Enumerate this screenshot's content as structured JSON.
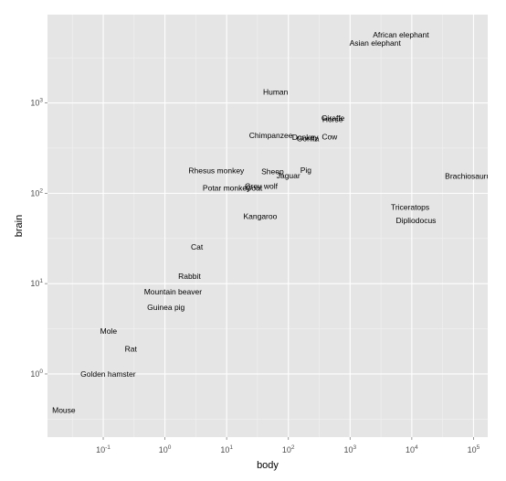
{
  "chart_data": {
    "type": "scatter",
    "title": "",
    "xlabel": "body",
    "ylabel": "brain",
    "x_scale": "log10",
    "y_scale": "log10",
    "xlim": [
      0.0125,
      170000
    ],
    "ylim": [
      0.2,
      9500
    ],
    "grid": true,
    "background": "#e5e5e5",
    "grid_color": "#ffffff",
    "x_ticks": [
      {
        "value": 0.1,
        "base": "10",
        "exp": "-1"
      },
      {
        "value": 1,
        "base": "10",
        "exp": "0"
      },
      {
        "value": 10,
        "base": "10",
        "exp": "1"
      },
      {
        "value": 100,
        "base": "10",
        "exp": "2"
      },
      {
        "value": 1000,
        "base": "10",
        "exp": "3"
      },
      {
        "value": 10000,
        "base": "10",
        "exp": "4"
      },
      {
        "value": 100000,
        "base": "10",
        "exp": "5"
      }
    ],
    "y_ticks": [
      {
        "value": 1,
        "base": "10",
        "exp": "0"
      },
      {
        "value": 10,
        "base": "10",
        "exp": "1"
      },
      {
        "value": 100,
        "base": "10",
        "exp": "2"
      },
      {
        "value": 1000,
        "base": "10",
        "exp": "3"
      }
    ],
    "points": [
      {
        "label": "Mountain beaver",
        "x": 1.35,
        "y": 8.1
      },
      {
        "label": "Cow",
        "x": 465,
        "y": 423
      },
      {
        "label": "Grey wolf",
        "x": 36.33,
        "y": 119.5
      },
      {
        "label": "Goat",
        "x": 27.66,
        "y": 115
      },
      {
        "label": "Guinea pig",
        "x": 1.04,
        "y": 5.5
      },
      {
        "label": "Dipliodocus",
        "x": 11700,
        "y": 50
      },
      {
        "label": "Asian elephant",
        "x": 2547,
        "y": 4603
      },
      {
        "label": "Donkey",
        "x": 187.1,
        "y": 419
      },
      {
        "label": "Horse",
        "x": 521,
        "y": 655
      },
      {
        "label": "Potar monkey",
        "x": 10,
        "y": 115
      },
      {
        "label": "Cat",
        "x": 3.3,
        "y": 25.6
      },
      {
        "label": "Giraffe",
        "x": 529,
        "y": 680
      },
      {
        "label": "Gorilla",
        "x": 207,
        "y": 406
      },
      {
        "label": "Human",
        "x": 62,
        "y": 1320
      },
      {
        "label": "African elephant",
        "x": 6654,
        "y": 5712
      },
      {
        "label": "Triceratops",
        "x": 9400,
        "y": 70
      },
      {
        "label": "Rhesus monkey",
        "x": 6.8,
        "y": 179
      },
      {
        "label": "Kangaroo",
        "x": 35,
        "y": 56
      },
      {
        "label": "Golden hamster",
        "x": 0.12,
        "y": 1
      },
      {
        "label": "Mouse",
        "x": 0.023,
        "y": 0.4
      },
      {
        "label": "Rabbit",
        "x": 2.5,
        "y": 12.1
      },
      {
        "label": "Sheep",
        "x": 55.5,
        "y": 175
      },
      {
        "label": "Jaguar",
        "x": 100,
        "y": 157
      },
      {
        "label": "Chimpanzee",
        "x": 52.16,
        "y": 440
      },
      {
        "label": "Rat",
        "x": 0.28,
        "y": 1.9
      },
      {
        "label": "Brachiosaurus",
        "x": 87000,
        "y": 154.5
      },
      {
        "label": "Mole",
        "x": 0.122,
        "y": 3
      },
      {
        "label": "Pig",
        "x": 192,
        "y": 180
      }
    ]
  }
}
